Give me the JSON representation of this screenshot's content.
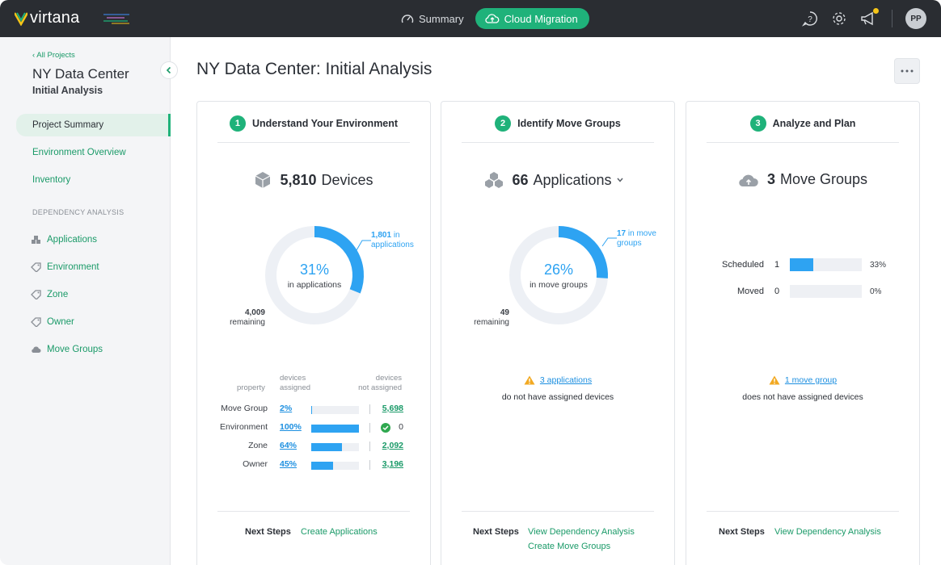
{
  "app": {
    "logo_text": "virtana"
  },
  "topnav": {
    "summary_label": "Summary",
    "cloud_label": "Cloud Migration",
    "avatar_initials": "PP"
  },
  "sidebar": {
    "back_label": "All Projects",
    "project_title": "NY Data Center",
    "project_subtitle": "Initial Analysis",
    "items": [
      {
        "label": "Project Summary",
        "active": true
      },
      {
        "label": "Environment Overview"
      },
      {
        "label": "Inventory"
      }
    ],
    "section_label": "DEPENDENCY ANALYSIS",
    "sub_items": [
      {
        "label": "Applications",
        "icon": "cubes-icon"
      },
      {
        "label": "Environment",
        "icon": "tag-icon"
      },
      {
        "label": "Zone",
        "icon": "tag-icon"
      },
      {
        "label": "Owner",
        "icon": "tag-icon"
      },
      {
        "label": "Move Groups",
        "icon": "cloud-icon"
      }
    ]
  },
  "page": {
    "title": "NY Data Center: Initial Analysis"
  },
  "cards": [
    {
      "step": "1",
      "title": "Understand Your Environment",
      "metric_value": "5,810",
      "metric_label": "Devices",
      "donut": {
        "percent_label": "31%",
        "fraction": 0.31,
        "sub_label": "in applications",
        "assigned_value": "1,801",
        "assigned_label_a": "in",
        "assigned_label_b": "applications",
        "remaining_value": "4,009",
        "remaining_label": "remaining"
      },
      "table": {
        "h_property": "property",
        "h_assigned_a": "devices",
        "h_assigned_b": "assigned",
        "h_unassigned_a": "devices",
        "h_unassigned_b": "not assigned",
        "rows": [
          {
            "property": "Move Group",
            "pct": "2%",
            "fraction": 0.02,
            "unassigned": "5,698"
          },
          {
            "property": "Environment",
            "pct": "100%",
            "fraction": 1.0,
            "unassigned": "0"
          },
          {
            "property": "Zone",
            "pct": "64%",
            "fraction": 0.64,
            "unassigned": "2,092"
          },
          {
            "property": "Owner",
            "pct": "45%",
            "fraction": 0.45,
            "unassigned": "3,196"
          }
        ]
      },
      "next_steps_label": "Next Steps",
      "next_links": [
        "Create Applications"
      ]
    },
    {
      "step": "2",
      "title": "Identify Move Groups",
      "metric_value": "66",
      "metric_label": "Applications",
      "donut": {
        "percent_label": "26%",
        "fraction": 0.26,
        "sub_label": "in move groups",
        "assigned_value": "17",
        "assigned_label_a": "in move",
        "assigned_label_b": "groups",
        "remaining_value": "49",
        "remaining_label": "remaining"
      },
      "warning": {
        "link": "3 applications",
        "text": "do not have assigned devices"
      },
      "next_steps_label": "Next Steps",
      "next_links": [
        "View Dependency Analysis",
        "Create Move Groups"
      ]
    },
    {
      "step": "3",
      "title": "Analyze and Plan",
      "metric_value": "3",
      "metric_label": "Move Groups",
      "bars": [
        {
          "label": "Scheduled",
          "count": "1",
          "pct": "33%",
          "fraction": 0.33
        },
        {
          "label": "Moved",
          "count": "0",
          "pct": "0%",
          "fraction": 0
        }
      ],
      "warning": {
        "link": "1 move group",
        "text": "does not have assigned devices"
      },
      "next_steps_label": "Next Steps",
      "next_links": [
        "View Dependency Analysis"
      ]
    }
  ],
  "colors": {
    "brand_green": "#1fb27a",
    "link_green": "#1a9a68",
    "accent_blue": "#2ea3f2",
    "warning": "#f2a922",
    "topbar": "#2a2d32"
  }
}
